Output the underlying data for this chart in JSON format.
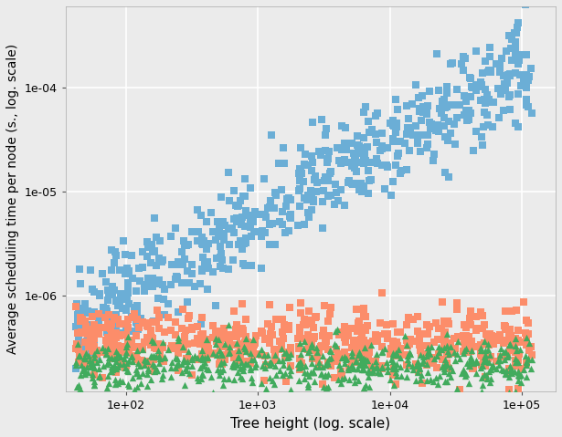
{
  "title": "",
  "xlabel": "Tree height (log. scale)",
  "ylabel": "Average scheduling time per node (s., log. scale)",
  "background_color": "#ebebeb",
  "grid_color": "#ffffff",
  "blue_color": "#6baed6",
  "salmon_color": "#fc8d6a",
  "green_color": "#41ab5d",
  "xlim_log": [
    35,
    180000
  ],
  "ylim_log": [
    1.2e-07,
    0.0006
  ],
  "seed": 42,
  "n_points": 608
}
